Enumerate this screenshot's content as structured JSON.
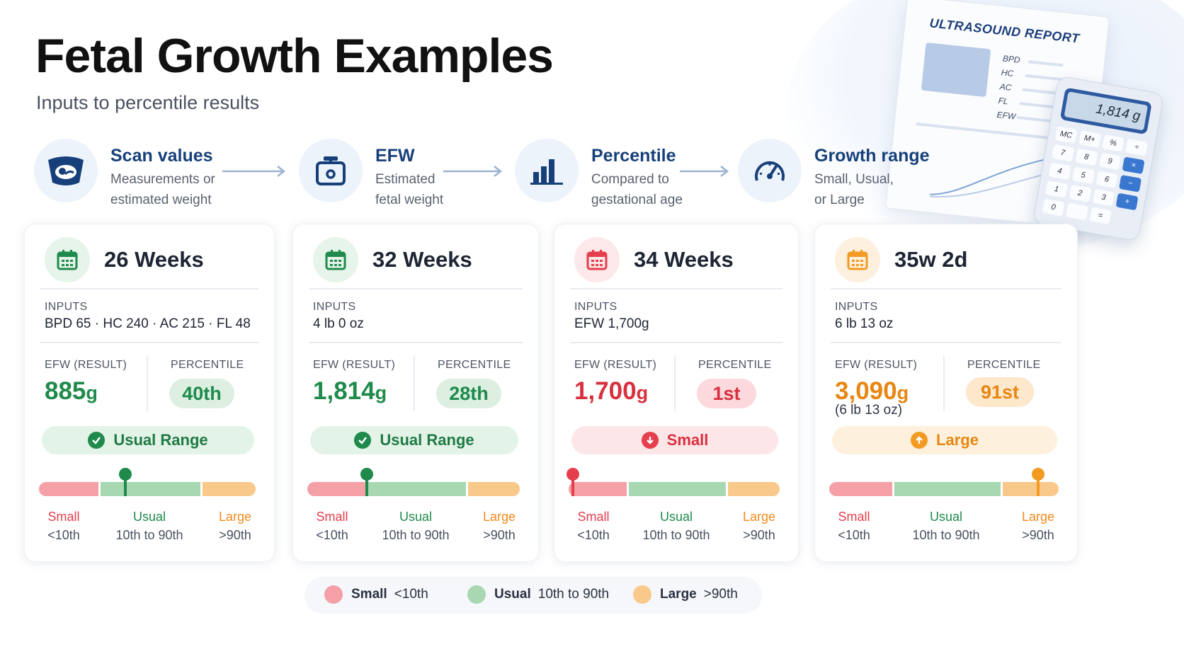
{
  "title": "Fetal Growth Examples",
  "subtitle": "Inputs to percentile results",
  "colors": {
    "navy": "#17407a",
    "small": "#e53e4c",
    "usual": "#1f8a4c",
    "large": "#f08a1c",
    "small_bar": "#f4a0a6",
    "usual_bar": "#a8d8b2",
    "large_bar": "#f8c98a"
  },
  "flow": [
    {
      "icon": "ultrasound-icon",
      "title": "Scan values",
      "desc1": "Measurements or",
      "desc2": "estimated weight"
    },
    {
      "icon": "scale-icon",
      "title": "EFW",
      "desc1": "Estimated",
      "desc2": "fetal weight"
    },
    {
      "icon": "bar-chart-icon",
      "title": "Percentile",
      "desc1": "Compared to",
      "desc2": "gestational age"
    },
    {
      "icon": "gauge-icon",
      "title": "Growth range",
      "desc1": "Small, Usual,",
      "desc2": "or Large"
    }
  ],
  "report": {
    "title": "ULTRASOUND REPORT",
    "labels": [
      "BPD",
      "HC",
      "AC",
      "FL",
      "EFW"
    ],
    "calculator_display": "1,814 g",
    "calculator_keys": [
      "MC",
      "M+",
      "%",
      "÷",
      "7",
      "8",
      "9",
      "×",
      "4",
      "5",
      "6",
      "−",
      "1",
      "2",
      "3",
      "+",
      "0",
      "",
      "="
    ]
  },
  "cards": [
    {
      "week": "26 Weeks",
      "inputs_label": "INPUTS",
      "inputs": "BPD 65 · HC 240  ·  AC 215 · FL 48",
      "efw_label": "EFW (RESULT)",
      "efw_num": "885",
      "efw_unit": "g",
      "efw_sub": "",
      "pct_label": "PERCENTILE",
      "percentile": "40th",
      "percentile_value": 40,
      "range": "Usual Range",
      "status": "usual"
    },
    {
      "week": "32 Weeks",
      "inputs_label": "INPUTS",
      "inputs": "4 lb 0 oz",
      "efw_label": "EFW (RESULT)",
      "efw_num": "1,814",
      "efw_unit": "g",
      "efw_sub": "",
      "pct_label": "PERCENTILE",
      "percentile": "28th",
      "percentile_value": 28,
      "range": "Usual Range",
      "status": "usual"
    },
    {
      "week": "34 Weeks",
      "inputs_label": "INPUTS",
      "inputs": "EFW  1,700g",
      "efw_label": "EFW (RESULT)",
      "efw_num": "1,700",
      "efw_unit": "g",
      "efw_sub": "",
      "pct_label": "PERCENTILE",
      "percentile": "1st",
      "percentile_value": 1,
      "range": "Small",
      "status": "small"
    },
    {
      "week": "35w 2d",
      "inputs_label": "INPUTS",
      "inputs": "6 lb 13 oz",
      "efw_label": "EFW (RESULT)",
      "efw_num": "3,090",
      "efw_unit": "g",
      "efw_sub": "(6 lb 13 oz)",
      "pct_label": "PERCENTILE",
      "percentile": "91st",
      "percentile_value": 91,
      "range": "Large",
      "status": "large"
    }
  ],
  "scale": {
    "small": {
      "name": "Small",
      "range": "<10th"
    },
    "usual": {
      "name": "Usual",
      "range": "10th to 90th"
    },
    "large": {
      "name": "Large",
      "range": ">90th"
    }
  },
  "legend": [
    {
      "name": "Small",
      "range": "<10th"
    },
    {
      "name": "Usual",
      "range": "10th to 90th"
    },
    {
      "name": "Large",
      "range": ">90th"
    }
  ]
}
